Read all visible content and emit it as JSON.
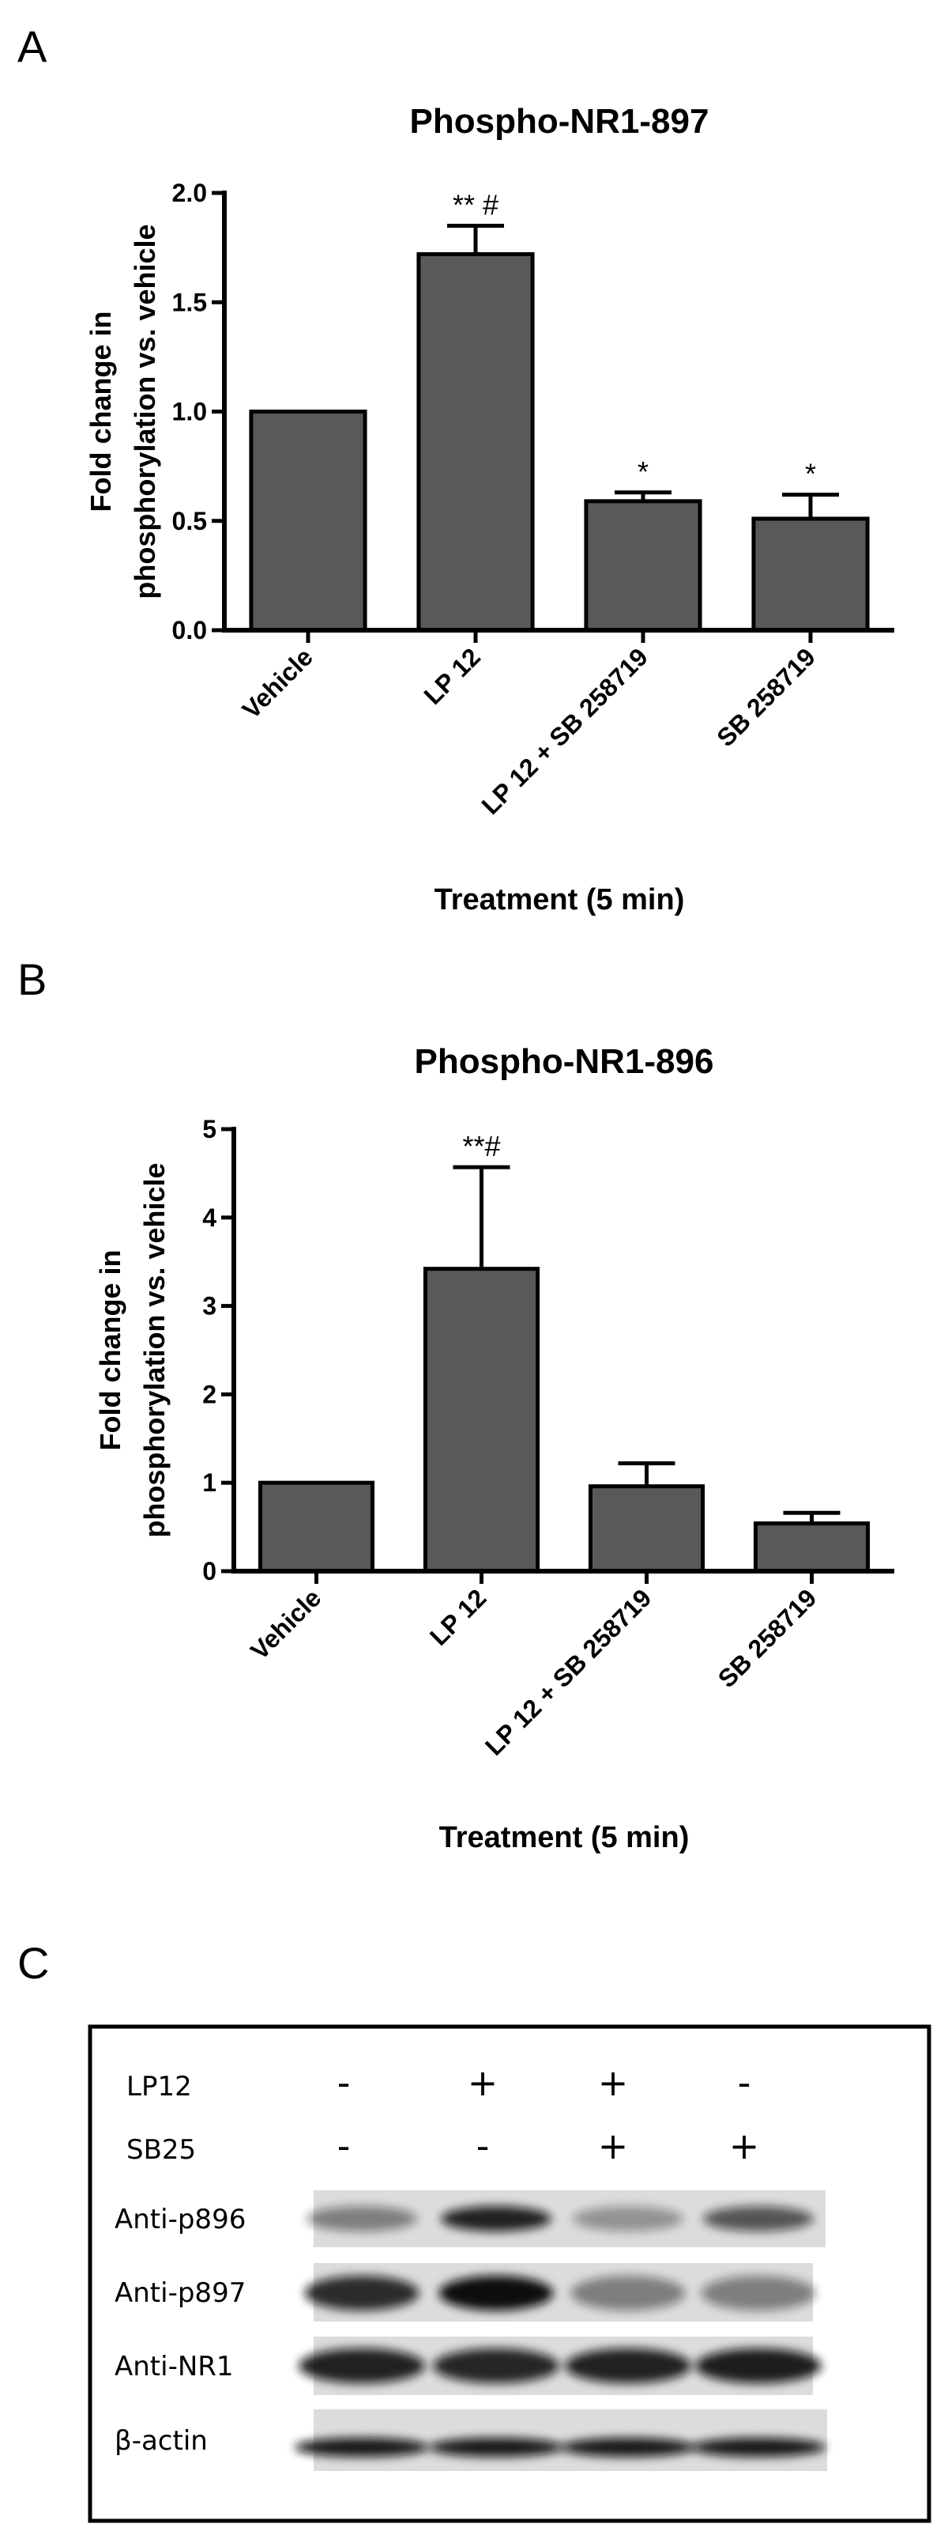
{
  "panel_labels": [
    "A",
    "B",
    "C"
  ],
  "chart_data": [
    {
      "type": "bar",
      "title": "Phospho-NR1-897",
      "ylabel": [
        "Fold change in",
        "phosphorylation vs. vehicle"
      ],
      "xlabel": "Treatment (5 min)",
      "categories": [
        "Vehicle",
        "LP 12",
        "LP 12 + SB 258719",
        "SB 258719"
      ],
      "values": [
        1.0,
        1.72,
        0.59,
        0.51
      ],
      "errors": [
        null,
        0.13,
        0.04,
        0.11
      ],
      "annotations": [
        null,
        "** #",
        "*",
        "*"
      ],
      "color": "#595959",
      "ylim": [
        0,
        2
      ],
      "yticks": [
        {
          "value": 0,
          "label": "0.0"
        },
        0.5,
        {
          "value": 1,
          "label": "1.0"
        },
        1.5,
        {
          "value": 2,
          "label": "2.0"
        }
      ]
    },
    {
      "type": "bar",
      "title": "Phospho-NR1-896",
      "ylabel": [
        "Fold change in",
        "phosphorylation vs. vehicle"
      ],
      "xlabel": "Treatment (5 min)",
      "categories": [
        "Vehicle",
        "LP 12",
        "LP 12 + SB 258719",
        "SB 258719"
      ],
      "values": [
        1.0,
        3.42,
        0.96,
        0.54
      ],
      "errors": [
        null,
        1.15,
        0.26,
        0.12
      ],
      "annotations": [
        null,
        "**#",
        null,
        null
      ],
      "color": "#595959",
      "ylim": [
        0,
        5
      ],
      "yticks": [
        0,
        1,
        2,
        3,
        4,
        5
      ]
    }
  ],
  "blot": {
    "treatments": [
      {
        "name": "LP12",
        "signs": [
          "-",
          "+",
          "+",
          "-"
        ]
      },
      {
        "name": "SB25",
        "signs": [
          "-",
          "-",
          "+",
          "+"
        ]
      }
    ],
    "rows": [
      "Anti-p896",
      "Anti-p897",
      "Anti-NR1",
      "β-actin"
    ]
  }
}
